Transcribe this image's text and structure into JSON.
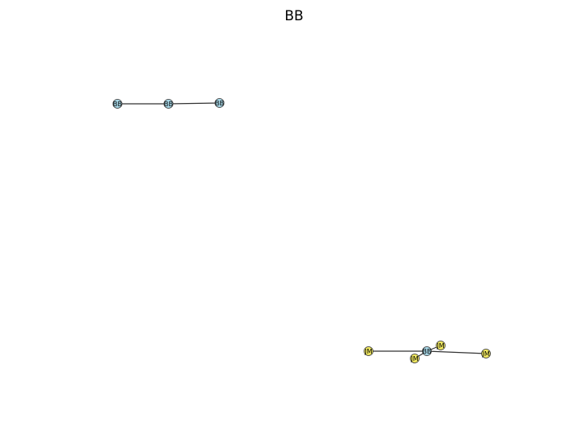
{
  "title": "BB",
  "colors": {
    "bb_node": "#a8d8e8",
    "jm_node": "#f0e860",
    "edge": "#333333"
  },
  "nodes": [
    {
      "id": "bb1",
      "label": "BB",
      "group": "BB"
    },
    {
      "id": "bb2",
      "label": "BB",
      "group": "BB"
    },
    {
      "id": "bb3",
      "label": "BB",
      "group": "BB"
    },
    {
      "id": "bb4",
      "label": "BB",
      "group": "BB"
    },
    {
      "id": "jm1",
      "label": "JM",
      "group": "JM"
    },
    {
      "id": "jm2",
      "label": "JM",
      "group": "JM"
    },
    {
      "id": "jm3",
      "label": "JM",
      "group": "JM"
    },
    {
      "id": "jm4",
      "label": "JM",
      "group": "JM"
    }
  ],
  "edges": [
    {
      "source": "bb1",
      "target": "bb2"
    },
    {
      "source": "bb2",
      "target": "bb3"
    },
    {
      "source": "bb4",
      "target": "jm1"
    },
    {
      "source": "bb4",
      "target": "jm2"
    },
    {
      "source": "bb4",
      "target": "jm3"
    },
    {
      "source": "bb4",
      "target": "jm4"
    }
  ]
}
